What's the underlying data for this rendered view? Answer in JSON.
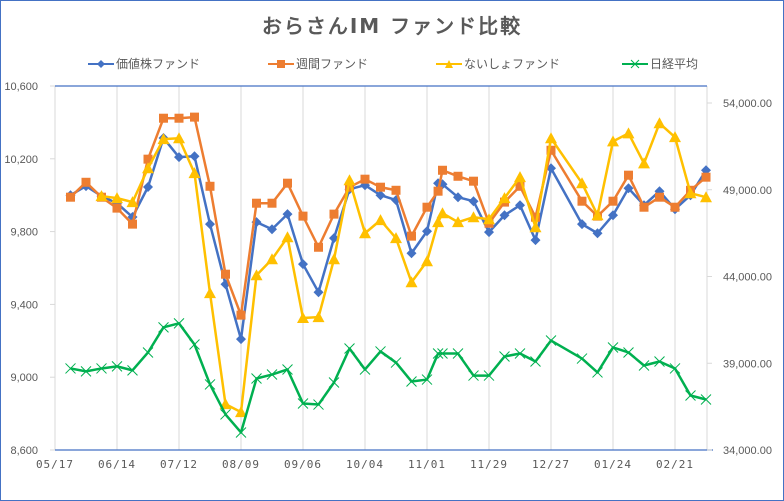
{
  "chart_data": {
    "type": "line",
    "title": "おらさんIM ファンド比較",
    "legend_position": "top",
    "grid": "vertical",
    "x_tick_labels": [
      "05/17",
      "06/14",
      "07/12",
      "08/09",
      "09/06",
      "10/04",
      "11/01",
      "11/29",
      "12/27",
      "01/24",
      "02/21"
    ],
    "x_range_days": [
      0,
      301
    ],
    "x_days": [
      7,
      14,
      21,
      28,
      35,
      42,
      49,
      56,
      63,
      70,
      77,
      84,
      91,
      98,
      105,
      112,
      119,
      126,
      133,
      140,
      147,
      154,
      161,
      168,
      173,
      175,
      182,
      189,
      196,
      203,
      210,
      217,
      224,
      238,
      245,
      252,
      259,
      266,
      273,
      280,
      287,
      294
    ],
    "left_axis": {
      "ylim": [
        8600,
        10600
      ],
      "ticks": [
        8600,
        9000,
        9400,
        9800,
        10200,
        10600
      ],
      "tick_labels": [
        "8,600",
        "9,000",
        "9,400",
        "9,800",
        "10,200",
        "10,600"
      ]
    },
    "right_axis": {
      "ylim": [
        34000,
        54000
      ],
      "ticks": [
        34000,
        39000,
        44000,
        49000,
        54000
      ],
      "tick_labels": [
        "34,000.00",
        "39,000.00",
        "44,000.00",
        "49,000.00",
        "54,000.00"
      ]
    },
    "series": [
      {
        "name": "価値株ファンド",
        "axis": "left",
        "color": "#4472c4",
        "marker": "diamond",
        "values": [
          10000,
          10050,
          9995,
          9956,
          9880,
          10045,
          10314,
          10209,
          10214,
          9841,
          9511,
          9209,
          9852,
          9813,
          9896,
          9621,
          9467,
          9764,
          10033,
          10055,
          10000,
          9973,
          9681,
          9802,
          10066,
          10060,
          9989,
          9967,
          9797,
          9890,
          9945,
          9753,
          10148,
          9841,
          9791,
          9890,
          10038,
          9945,
          10022,
          9923,
          10000,
          10137
        ]
      },
      {
        "name": "週間ファンド",
        "axis": "left",
        "color": "#ed7d31",
        "marker": "square",
        "values": [
          9989,
          10071,
          9989,
          9929,
          9841,
          10198,
          10423,
          10423,
          10429,
          10049,
          9566,
          9341,
          9956,
          9956,
          10066,
          9885,
          9714,
          9896,
          10044,
          10088,
          10044,
          10027,
          9775,
          9934,
          10022,
          10137,
          10104,
          10077,
          9846,
          9962,
          10049,
          9879,
          10247,
          9967,
          9885,
          9967,
          10110,
          9934,
          9989,
          9934,
          10027,
          10099
        ]
      },
      {
        "name": "ないしょファンド",
        "axis": "left",
        "color": "#ffc000",
        "marker": "triangle",
        "values": [
          null,
          null,
          9995,
          9984,
          9962,
          10148,
          10308,
          10313,
          10121,
          9462,
          8852,
          8808,
          9560,
          9648,
          9769,
          9325,
          9330,
          9648,
          10082,
          9791,
          9863,
          9764,
          9522,
          9637,
          9852,
          9901,
          9852,
          9879,
          9868,
          9984,
          10099,
          9824,
          10313,
          10066,
          9890,
          10296,
          10340,
          10175,
          10395,
          10319,
          10011,
          9989
        ]
      },
      {
        "name": "日経平均",
        "axis": "right",
        "color": "#00b050",
        "marker": "x",
        "values": [
          38700,
          38530,
          38700,
          38820,
          38590,
          39620,
          41070,
          41300,
          40080,
          37780,
          36050,
          35010,
          38120,
          38350,
          38640,
          36680,
          36620,
          37890,
          39850,
          38640,
          39680,
          39040,
          37950,
          38060,
          39560,
          39560,
          39560,
          38290,
          38290,
          39390,
          39560,
          39100,
          40310,
          39270,
          38470,
          39910,
          39620,
          38870,
          39100,
          38700,
          37140,
          36910
        ]
      }
    ]
  }
}
